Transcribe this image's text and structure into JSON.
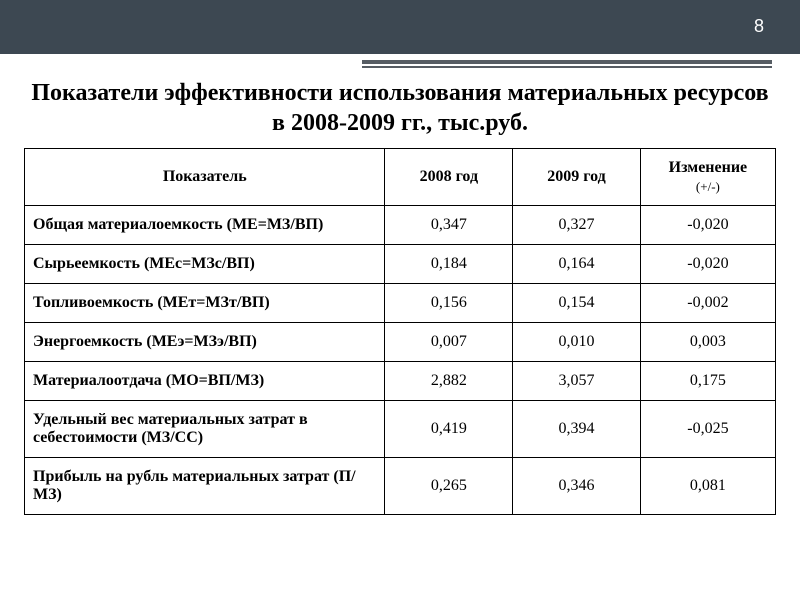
{
  "page_number": "8",
  "title": "Показатели эффективности использования материальных ресурсов в 2008-2009 гг., тыс.руб.",
  "table": {
    "headers": {
      "indicator": "Показатель",
      "y2008": "2008 год",
      "y2009": "2009 год",
      "change": "Изменение",
      "change_sub": "(+/-)"
    },
    "rows": [
      {
        "indicator": "Общая материалоемкость (МЕ=МЗ/ВП)",
        "y2008": "0,347",
        "y2009": "0,327",
        "change": "-0,020"
      },
      {
        "indicator": "Сырьеемкость (МЕс=МЗс/ВП)",
        "y2008": "0,184",
        "y2009": "0,164",
        "change": "-0,020"
      },
      {
        "indicator": "Топливоемкость (МЕт=МЗт/ВП)",
        "y2008": "0,156",
        "y2009": "0,154",
        "change": "-0,002"
      },
      {
        "indicator": "Энергоемкость (МЕэ=МЗэ/ВП)",
        "y2008": "0,007",
        "y2009": "0,010",
        "change": "0,003"
      },
      {
        "indicator": "Материалоотдача (МО=ВП/МЗ)",
        "y2008": "2,882",
        "y2009": "3,057",
        "change": "0,175"
      },
      {
        "indicator": "Удельный вес материальных затрат в себестоимости (МЗ/СС)",
        "y2008": "0,419",
        "y2009": "0,394",
        "change": "-0,025"
      },
      {
        "indicator": "Прибыль на рубль материальных затрат (П/МЗ)",
        "y2008": "0,265",
        "y2009": "0,346",
        "change": "0,081"
      }
    ]
  },
  "colors": {
    "header_band": "#3d4852",
    "divider": "#565c63",
    "text": "#000000",
    "background": "#ffffff",
    "border": "#000000"
  }
}
